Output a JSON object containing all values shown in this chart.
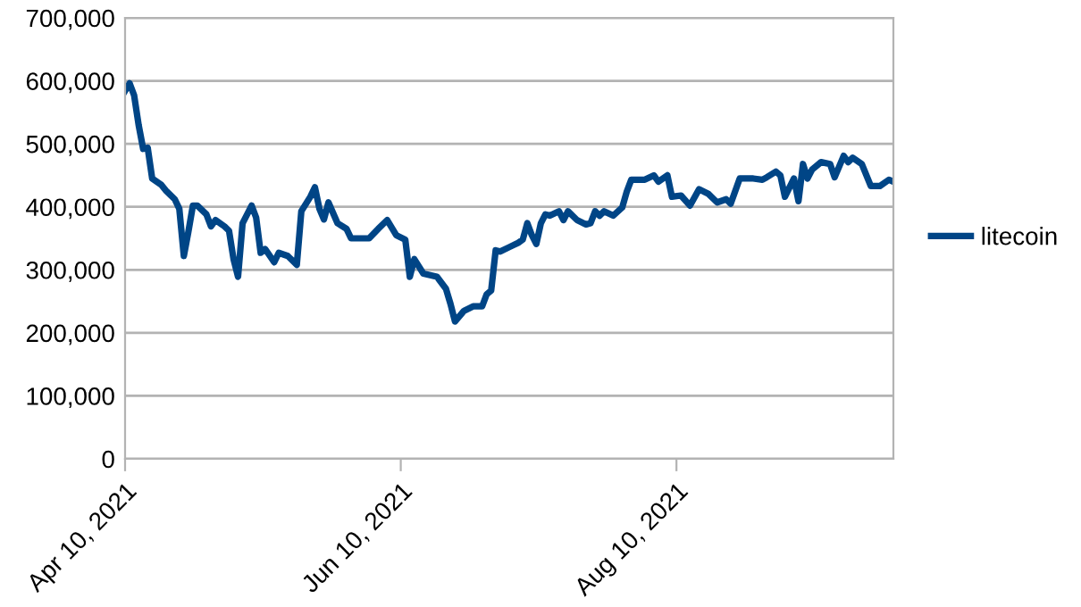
{
  "chart_data": {
    "type": "line",
    "legend": "right",
    "grid": "y",
    "marker": "none",
    "line_style": "solid",
    "xlim": [
      "2021-04-10",
      "2021-09-27"
    ],
    "xticks": [
      {
        "value": "2021-04-10",
        "label": "Apr 10, 2021"
      },
      {
        "value": "2021-06-10",
        "label": "Jun 10, 2021"
      },
      {
        "value": "2021-08-10",
        "label": "Aug 10, 2021"
      }
    ],
    "ylim": [
      0,
      700000
    ],
    "yticks": [
      {
        "value": 0,
        "label": "0"
      },
      {
        "value": 100000,
        "label": "100,000"
      },
      {
        "value": 200000,
        "label": "200,000"
      },
      {
        "value": 300000,
        "label": "300,000"
      },
      {
        "value": 400000,
        "label": "400,000"
      },
      {
        "value": 500000,
        "label": "500,000"
      },
      {
        "value": 600000,
        "label": "600,000"
      },
      {
        "value": 700000,
        "label": "700,000"
      }
    ],
    "series": [
      {
        "name": "litecoin",
        "color": "#004586",
        "x": [
          "2021-04-10",
          "2021-04-11",
          "2021-04-12",
          "2021-04-13",
          "2021-04-14",
          "2021-04-15",
          "2021-04-16",
          "2021-04-18",
          "2021-04-19",
          "2021-04-21",
          "2021-04-22",
          "2021-04-23",
          "2021-04-24",
          "2021-04-25",
          "2021-04-26",
          "2021-04-28",
          "2021-04-29",
          "2021-04-30",
          "2021-05-02",
          "2021-05-03",
          "2021-05-04",
          "2021-05-05",
          "2021-05-06",
          "2021-05-08",
          "2021-05-09",
          "2021-05-10",
          "2021-05-11",
          "2021-05-13",
          "2021-05-14",
          "2021-05-16",
          "2021-05-18",
          "2021-05-19",
          "2021-05-21",
          "2021-05-22",
          "2021-05-23",
          "2021-05-24",
          "2021-05-25",
          "2021-05-27",
          "2021-05-29",
          "2021-05-30",
          "2021-06-03",
          "2021-06-05",
          "2021-06-07",
          "2021-06-09",
          "2021-06-11",
          "2021-06-12",
          "2021-06-13",
          "2021-06-15",
          "2021-06-18",
          "2021-06-20",
          "2021-06-21",
          "2021-06-22",
          "2021-06-24",
          "2021-06-26",
          "2021-06-28",
          "2021-06-29",
          "2021-06-30",
          "2021-07-01",
          "2021-07-02",
          "2021-07-04",
          "2021-07-06",
          "2021-07-07",
          "2021-07-08",
          "2021-07-09",
          "2021-07-10",
          "2021-07-11",
          "2021-07-12",
          "2021-07-13",
          "2021-07-15",
          "2021-07-16",
          "2021-07-17",
          "2021-07-19",
          "2021-07-21",
          "2021-07-22",
          "2021-07-23",
          "2021-07-24",
          "2021-07-25",
          "2021-07-27",
          "2021-07-29",
          "2021-07-30",
          "2021-07-31",
          "2021-08-03",
          "2021-08-05",
          "2021-08-06",
          "2021-08-08",
          "2021-08-09",
          "2021-08-11",
          "2021-08-13",
          "2021-08-15",
          "2021-08-17",
          "2021-08-19",
          "2021-08-21",
          "2021-08-22",
          "2021-08-24",
          "2021-08-27",
          "2021-08-29",
          "2021-08-30",
          "2021-09-01",
          "2021-09-02",
          "2021-09-03",
          "2021-09-05",
          "2021-09-06",
          "2021-09-07",
          "2021-09-08",
          "2021-09-09",
          "2021-09-11",
          "2021-09-13",
          "2021-09-14",
          "2021-09-16",
          "2021-09-17",
          "2021-09-18",
          "2021-09-20",
          "2021-09-22",
          "2021-09-24",
          "2021-09-26",
          "2021-09-27"
        ],
        "values": [
          584000,
          596000,
          577000,
          530000,
          492000,
          494000,
          445000,
          435000,
          426000,
          412000,
          397000,
          322000,
          360000,
          402000,
          402000,
          388000,
          369000,
          379000,
          369000,
          362000,
          317000,
          289000,
          374000,
          402000,
          383000,
          327000,
          333000,
          312000,
          327000,
          322000,
          308000,
          393000,
          416000,
          431000,
          397000,
          380000,
          407000,
          374000,
          365000,
          350000,
          350000,
          365000,
          379000,
          355000,
          348000,
          289000,
          317000,
          294000,
          289000,
          270000,
          246000,
          218000,
          235000,
          242000,
          242000,
          261000,
          267000,
          331000,
          329000,
          336000,
          343000,
          348000,
          374000,
          355000,
          341000,
          374000,
          388000,
          386000,
          393000,
          379000,
          393000,
          379000,
          372000,
          374000,
          393000,
          386000,
          393000,
          386000,
          399000,
          424000,
          443000,
          443000,
          450000,
          440000,
          450000,
          416000,
          418000,
          402000,
          428000,
          421000,
          407000,
          412000,
          405000,
          445000,
          445000,
          443000,
          447000,
          456000,
          450000,
          416000,
          445000,
          409000,
          468000,
          445000,
          459000,
          471000,
          468000,
          447000,
          481000,
          471000,
          478000,
          468000,
          433000,
          433000,
          443000,
          440000
        ]
      }
    ]
  }
}
